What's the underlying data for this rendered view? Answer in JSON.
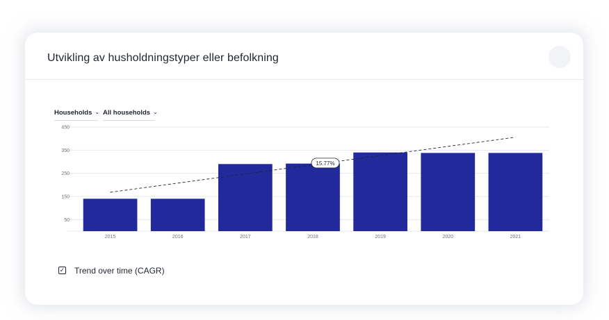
{
  "header": {
    "title": "Utvikling av husholdningstyper eller befolkning"
  },
  "filters": {
    "metric": {
      "selected": "Households"
    },
    "type": {
      "selected": "All households"
    }
  },
  "trend": {
    "label": "Trend over time (CAGR)",
    "checked": true,
    "cagr_label": "15.77%"
  },
  "colors": {
    "bar": "#22299b",
    "grid": "#e5e7eb",
    "trend": "#1f2430"
  },
  "chart_data": {
    "type": "bar",
    "categories": [
      "2015",
      "2016",
      "2017",
      "2018",
      "2019",
      "2020",
      "2021"
    ],
    "values": [
      140,
      140,
      290,
      292,
      340,
      338,
      338
    ],
    "ylim": [
      0,
      450
    ],
    "yticks": [
      50,
      150,
      250,
      350,
      450
    ],
    "grid": true,
    "trend_line": {
      "start_value": 168,
      "end_value": 406,
      "annotation": "15.77%"
    }
  }
}
